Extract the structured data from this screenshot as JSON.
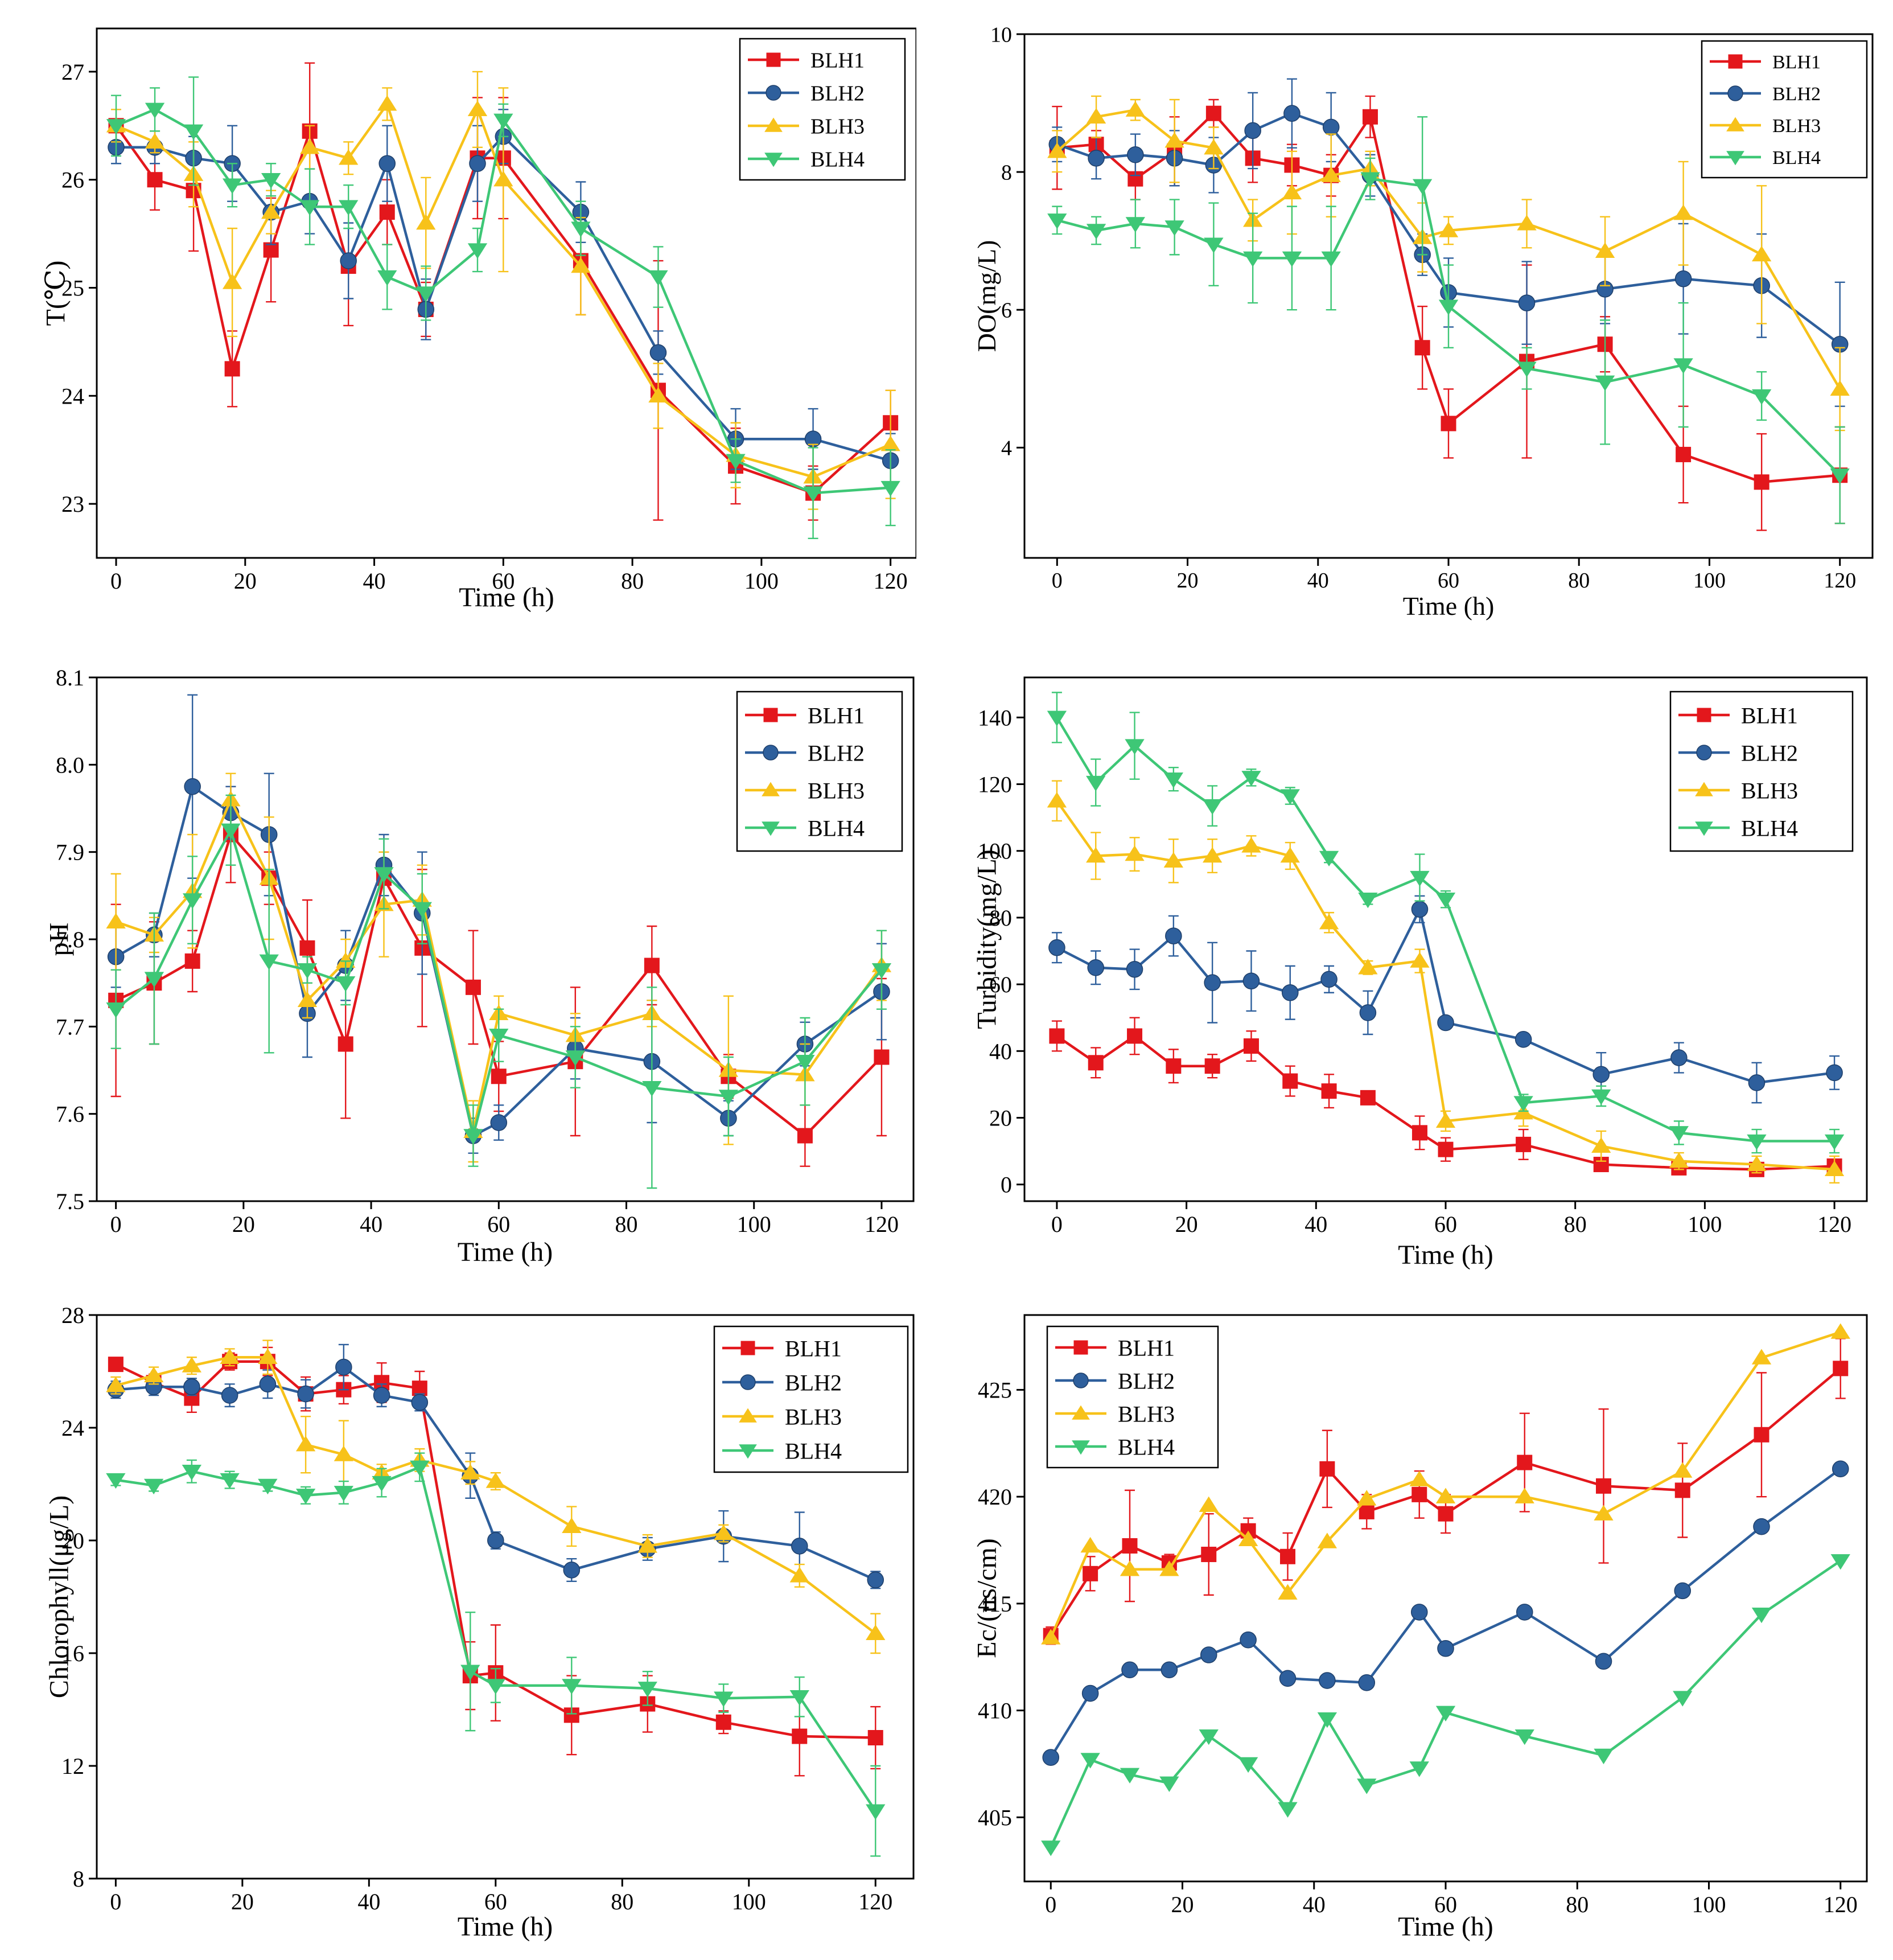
{
  "series_colors": {
    "BLH1": "#e3171c",
    "BLH2": "#2e5f9c",
    "BLH3": "#f7c21a",
    "BLH4": "#3ec776"
  },
  "series_markers": {
    "BLH1": "square",
    "BLH2": "circle",
    "BLH3": "triangle-up",
    "BLH4": "triangle-down"
  },
  "chart_data": [
    {
      "id": "temperature",
      "type": "line",
      "ylabel": "T(℃)",
      "xlabel": "Time (h)",
      "xlim": [
        -3,
        124
      ],
      "ylim": [
        22.5,
        27.4
      ],
      "xticks": [
        0,
        20,
        40,
        60,
        80,
        100,
        120
      ],
      "yticks": [
        23,
        24,
        25,
        26,
        27
      ],
      "legend_position": "top-right",
      "x": [
        0,
        6,
        12,
        18,
        24,
        30,
        36,
        42,
        48,
        56,
        60,
        72,
        84,
        96,
        108,
        120
      ],
      "series": [
        {
          "name": "BLH1",
          "values": [
            26.5,
            26.0,
            25.9,
            24.25,
            25.35,
            26.45,
            25.2,
            25.7,
            24.8,
            26.2,
            26.2,
            25.25,
            24.05,
            23.35,
            23.1,
            23.75
          ],
          "errors": [
            0.05,
            0.28,
            0.56,
            0.35,
            0.48,
            0.63,
            0.55,
            0.3,
            0.25,
            0.56,
            0.56,
            0.5,
            1.2,
            0.35,
            0.25,
            0.3
          ]
        },
        {
          "name": "BLH2",
          "values": [
            26.3,
            26.3,
            26.2,
            26.15,
            25.7,
            25.8,
            25.25,
            26.15,
            24.8,
            26.15,
            26.4,
            25.7,
            24.4,
            23.6,
            23.6,
            23.4
          ],
          "errors": [
            0.15,
            0.15,
            0.2,
            0.35,
            0.3,
            0.3,
            0.35,
            0.35,
            0.28,
            0.35,
            0.25,
            0.28,
            0.2,
            0.28,
            0.28,
            0.25
          ]
        },
        {
          "name": "BLH3",
          "values": [
            26.5,
            26.35,
            26.05,
            25.05,
            25.7,
            26.3,
            26.2,
            26.7,
            25.6,
            26.65,
            26.0,
            25.2,
            24.0,
            23.45,
            23.25,
            23.55
          ],
          "errors": [
            0.15,
            0.1,
            0.3,
            0.5,
            0.2,
            0.2,
            0.15,
            0.15,
            0.42,
            0.35,
            0.85,
            0.45,
            0.3,
            0.3,
            0.3,
            0.5
          ]
        },
        {
          "name": "BLH4",
          "values": [
            26.5,
            26.65,
            26.45,
            25.95,
            26.0,
            25.75,
            25.75,
            25.1,
            24.95,
            25.35,
            26.55,
            25.55,
            25.1,
            23.4,
            23.1,
            23.15
          ],
          "errors": [
            0.28,
            0.2,
            0.5,
            0.2,
            0.15,
            0.35,
            0.2,
            0.3,
            0.25,
            0.2,
            0.15,
            0.25,
            0.28,
            0.2,
            0.42,
            0.35
          ]
        }
      ]
    },
    {
      "id": "do",
      "type": "line",
      "ylabel": "DO(mg/L)",
      "xlabel": "Time (h)",
      "xlim": [
        -5,
        125
      ],
      "ylim": [
        2.4,
        10
      ],
      "xticks": [
        0,
        20,
        40,
        60,
        80,
        100,
        120
      ],
      "yticks": [
        4,
        6,
        8,
        10
      ],
      "legend_position": "top-right",
      "x": [
        0,
        6,
        12,
        18,
        24,
        30,
        36,
        42,
        48,
        56,
        60,
        72,
        84,
        96,
        108,
        120
      ],
      "series": [
        {
          "name": "BLH1",
          "values": [
            8.35,
            8.4,
            7.9,
            8.3,
            8.85,
            8.2,
            8.1,
            7.95,
            8.8,
            5.45,
            4.35,
            5.25,
            5.5,
            3.9,
            3.5,
            3.6
          ],
          "errors": [
            0.6,
            0.2,
            0.3,
            0.5,
            0.2,
            0.35,
            0.3,
            0.3,
            0.3,
            0.6,
            0.5,
            1.4,
            0.4,
            0.7,
            0.7,
            0.7
          ]
        },
        {
          "name": "BLH2",
          "values": [
            8.4,
            8.2,
            8.25,
            8.2,
            8.1,
            8.6,
            8.85,
            8.65,
            7.95,
            6.8,
            6.25,
            6.1,
            6.3,
            6.45,
            6.35,
            5.5
          ],
          "errors": [
            0.25,
            0.3,
            0.3,
            0.4,
            0.4,
            0.55,
            0.5,
            0.5,
            0.3,
            0.3,
            0.5,
            0.6,
            0.5,
            0.8,
            0.75,
            0.9
          ]
        },
        {
          "name": "BLH3",
          "values": [
            8.3,
            8.8,
            8.9,
            8.45,
            8.35,
            7.3,
            7.7,
            7.95,
            8.05,
            7.05,
            7.15,
            7.25,
            6.85,
            7.4,
            6.8,
            4.85
          ],
          "errors": [
            0.3,
            0.3,
            0.15,
            0.6,
            0.3,
            0.3,
            0.6,
            0.6,
            0.25,
            0.5,
            0.2,
            0.35,
            0.5,
            0.75,
            1.0,
            0.6
          ]
        },
        {
          "name": "BLH4",
          "values": [
            7.3,
            7.15,
            7.25,
            7.2,
            6.95,
            6.75,
            6.75,
            6.75,
            7.9,
            7.8,
            6.05,
            5.15,
            4.95,
            5.2,
            4.75,
            3.6
          ],
          "errors": [
            0.2,
            0.2,
            0.35,
            0.4,
            0.6,
            0.65,
            0.75,
            0.75,
            0.3,
            1.0,
            0.6,
            0.3,
            0.9,
            0.9,
            0.35,
            0.7
          ]
        }
      ]
    },
    {
      "id": "ph",
      "type": "line",
      "ylabel": "pH",
      "xlabel": "Time (h)",
      "xlim": [
        -3,
        125
      ],
      "ylim": [
        7.5,
        8.1
      ],
      "xticks": [
        0,
        20,
        40,
        60,
        80,
        100,
        120
      ],
      "yticks": [
        7.5,
        7.6,
        7.7,
        7.8,
        7.9,
        8.0,
        8.1
      ],
      "legend_position": "top-right",
      "x": [
        0,
        6,
        12,
        18,
        24,
        30,
        36,
        42,
        48,
        56,
        60,
        72,
        84,
        96,
        108,
        120
      ],
      "series": [
        {
          "name": "BLH1",
          "values": [
            7.73,
            7.75,
            7.775,
            7.92,
            7.87,
            7.79,
            7.68,
            7.87,
            7.79,
            7.745,
            7.643,
            7.66,
            7.77,
            7.643,
            7.575,
            7.665
          ],
          "errors": [
            0.11,
            0.07,
            0.035,
            0.055,
            0.03,
            0.055,
            0.085,
            0.03,
            0.09,
            0.065,
            0.04,
            0.085,
            0.045,
            0.025,
            0.035,
            0.09
          ]
        },
        {
          "name": "BLH2",
          "values": [
            7.78,
            7.805,
            7.975,
            7.945,
            7.92,
            7.715,
            7.77,
            7.885,
            7.83,
            7.575,
            7.59,
            7.675,
            7.66,
            7.595,
            7.68,
            7.74
          ],
          "errors": [
            0.035,
            0.025,
            0.105,
            0.03,
            0.07,
            0.05,
            0.04,
            0.035,
            0.07,
            0.02,
            0.02,
            0.035,
            0.07,
            0.02,
            0.025,
            0.055
          ]
        },
        {
          "name": "BLH3",
          "values": [
            7.82,
            7.805,
            7.855,
            7.96,
            7.87,
            7.73,
            7.775,
            7.84,
            7.845,
            7.58,
            7.715,
            7.69,
            7.715,
            7.65,
            7.645,
            7.77
          ],
          "errors": [
            0.055,
            0.02,
            0.065,
            0.03,
            0.07,
            0.02,
            0.025,
            0.06,
            0.04,
            0.035,
            0.02,
            0.025,
            0.015,
            0.085,
            0.035,
            0.04
          ]
        },
        {
          "name": "BLH4",
          "values": [
            7.72,
            7.755,
            7.845,
            7.925,
            7.775,
            7.765,
            7.75,
            7.875,
            7.835,
            7.575,
            7.69,
            7.665,
            7.63,
            7.62,
            7.66,
            7.765
          ],
          "errors": [
            0.045,
            0.075,
            0.05,
            0.04,
            0.105,
            0.015,
            0.025,
            0.04,
            0.04,
            0.035,
            0.03,
            0.035,
            0.115,
            0.045,
            0.05,
            0.045
          ]
        }
      ]
    },
    {
      "id": "turbidity",
      "type": "line",
      "ylabel": "Turbidity(mg/L)",
      "xlabel": "Time (h)",
      "xlim": [
        -5,
        125
      ],
      "ylim": [
        -5,
        152
      ],
      "xticks": [
        0,
        20,
        40,
        60,
        80,
        100,
        120
      ],
      "yticks": [
        0,
        20,
        40,
        60,
        80,
        100,
        120,
        140
      ],
      "legend_position": "top-right",
      "x": [
        0,
        6,
        12,
        18,
        24,
        30,
        36,
        42,
        48,
        56,
        60,
        72,
        84,
        96,
        108,
        120
      ],
      "series": [
        {
          "name": "BLH1",
          "values": [
            44.5,
            36.5,
            44.5,
            35.5,
            35.5,
            41.5,
            31.0,
            28.0,
            26.0,
            15.5,
            10.5,
            12.0,
            6.0,
            5.0,
            4.5,
            5.5
          ],
          "errors": [
            4.5,
            4.5,
            5.5,
            5.0,
            3.5,
            4.5,
            4.5,
            5.0,
            2.0,
            5.0,
            3.5,
            4.5,
            1.5,
            1.5,
            1.5,
            1.5
          ]
        },
        {
          "name": "BLH2",
          "values": [
            71.0,
            65.0,
            64.5,
            74.5,
            60.5,
            61.0,
            57.5,
            61.5,
            51.5,
            82.5,
            48.5,
            43.5,
            33.0,
            38.0,
            30.5,
            33.5
          ],
          "errors": [
            4.5,
            5.0,
            6.0,
            6.0,
            12.0,
            9.0,
            8.0,
            4.0,
            6.5,
            4.0,
            1.5,
            1.5,
            6.5,
            4.5,
            6.0,
            5.0
          ]
        },
        {
          "name": "BLH3",
          "values": [
            115.0,
            98.5,
            99.0,
            97.0,
            98.5,
            101.5,
            98.5,
            78.5,
            65.0,
            67.0,
            19.0,
            21.5,
            11.5,
            7.0,
            6.0,
            4.5
          ],
          "errors": [
            6.0,
            7.0,
            5.0,
            6.5,
            5.0,
            3.0,
            4.0,
            3.0,
            2.0,
            3.5,
            3.0,
            4.0,
            4.5,
            2.5,
            2.5,
            4.0
          ]
        },
        {
          "name": "BLH4",
          "values": [
            140.0,
            120.5,
            131.5,
            121.5,
            113.5,
            122.0,
            116.5,
            98.0,
            85.5,
            92.0,
            85.5,
            24.5,
            26.5,
            15.5,
            13.0,
            13.0
          ],
          "errors": [
            7.5,
            7.0,
            10.0,
            3.5,
            6.0,
            2.5,
            2.5,
            1.5,
            1.5,
            7.0,
            2.5,
            2.5,
            3.0,
            3.5,
            3.5,
            3.5
          ]
        }
      ]
    },
    {
      "id": "chlorophyll",
      "type": "line",
      "ylabel": "Chlorophyll(μg/L)",
      "xlabel": "Time (h)",
      "xlim": [
        -3,
        126
      ],
      "ylim": [
        8,
        28
      ],
      "xticks": [
        0,
        20,
        40,
        60,
        80,
        100,
        120
      ],
      "yticks": [
        8,
        12,
        16,
        20,
        24,
        28
      ],
      "legend_position": "top-right",
      "x": [
        0,
        6,
        12,
        18,
        24,
        30,
        36,
        42,
        48,
        56,
        60,
        72,
        84,
        96,
        108,
        120
      ],
      "series": [
        {
          "name": "BLH1",
          "values": [
            26.25,
            25.6,
            25.05,
            26.35,
            26.35,
            25.2,
            25.35,
            25.6,
            25.4,
            15.2,
            15.3,
            13.8,
            14.2,
            13.55,
            13.05,
            13.0
          ],
          "errors": [
            0.2,
            0.3,
            0.5,
            0.3,
            0.5,
            0.6,
            0.5,
            0.7,
            0.6,
            1.2,
            1.7,
            1.4,
            1.0,
            0.4,
            1.4,
            1.1
          ]
        },
        {
          "name": "BLH2",
          "values": [
            25.35,
            25.45,
            25.45,
            25.15,
            25.55,
            25.2,
            26.15,
            25.15,
            24.9,
            22.3,
            20.0,
            18.95,
            19.7,
            20.15,
            19.8,
            18.6
          ],
          "errors": [
            0.3,
            0.3,
            0.3,
            0.4,
            0.5,
            0.5,
            0.8,
            0.4,
            0.3,
            0.8,
            0.3,
            0.4,
            0.4,
            0.9,
            1.2,
            0.3
          ]
        },
        {
          "name": "BLH3",
          "values": [
            25.5,
            25.85,
            26.2,
            26.5,
            26.5,
            23.4,
            23.05,
            22.4,
            22.85,
            22.4,
            22.1,
            20.5,
            19.8,
            20.25,
            18.75,
            16.7
          ],
          "errors": [
            0.3,
            0.3,
            0.3,
            0.3,
            0.6,
            1.0,
            1.2,
            0.3,
            0.4,
            0.4,
            0.3,
            0.7,
            0.4,
            0.3,
            0.4,
            0.7
          ]
        },
        {
          "name": "BLH4",
          "values": [
            22.15,
            21.95,
            22.45,
            22.15,
            21.95,
            21.6,
            21.7,
            22.05,
            22.6,
            15.35,
            14.85,
            14.85,
            14.75,
            14.4,
            14.45,
            10.4
          ],
          "errors": [
            0.2,
            0.2,
            0.4,
            0.3,
            0.2,
            0.3,
            0.4,
            0.5,
            0.5,
            2.1,
            0.6,
            1.0,
            0.6,
            0.5,
            0.7,
            1.6
          ]
        }
      ]
    },
    {
      "id": "ec",
      "type": "line",
      "ylabel": "Ec/(us/cm)",
      "xlabel": "Time (h)",
      "xlim": [
        -4,
        124
      ],
      "ylim": [
        402,
        428.5
      ],
      "xticks": [
        0,
        20,
        40,
        60,
        80,
        100,
        120
      ],
      "yticks": [
        405,
        410,
        415,
        420,
        425
      ],
      "legend_position": "top-left",
      "x": [
        0,
        6,
        12,
        18,
        24,
        30,
        36,
        42,
        48,
        56,
        60,
        72,
        84,
        96,
        108,
        120
      ],
      "series": [
        {
          "name": "BLH1",
          "values": [
            413.5,
            416.4,
            417.7,
            416.9,
            417.3,
            418.4,
            417.2,
            421.3,
            419.3,
            420.1,
            419.2,
            421.6,
            420.5,
            420.3,
            422.9,
            426.0
          ],
          "errors": [
            0.4,
            0.8,
            2.6,
            0.4,
            1.9,
            0.6,
            1.1,
            1.8,
            0.8,
            1.1,
            0.9,
            2.3,
            3.6,
            2.2,
            2.9,
            1.4
          ]
        },
        {
          "name": "BLH2",
          "values": [
            407.8,
            410.8,
            411.9,
            411.9,
            412.6,
            413.3,
            411.5,
            411.4,
            411.3,
            414.6,
            412.9,
            414.6,
            412.3,
            415.6,
            418.6,
            421.3
          ]
        },
        {
          "name": "BLH3",
          "values": [
            413.4,
            417.7,
            416.6,
            416.6,
            419.6,
            418.0,
            415.5,
            417.9,
            419.9,
            420.8,
            420.0,
            420.0,
            419.2,
            421.2,
            426.5,
            427.7
          ]
        },
        {
          "name": "BLH4",
          "values": [
            403.6,
            407.7,
            407.0,
            406.6,
            408.8,
            407.5,
            405.4,
            409.6,
            406.5,
            407.3,
            409.9,
            408.8,
            407.9,
            410.6,
            414.5,
            417.0
          ]
        }
      ]
    }
  ]
}
